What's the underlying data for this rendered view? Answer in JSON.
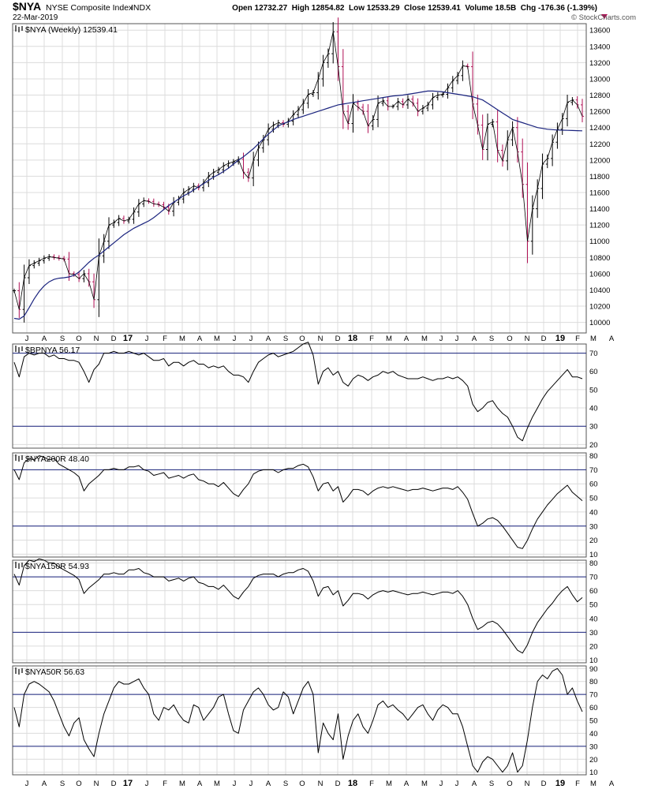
{
  "header": {
    "symbol": "$NYA",
    "name": "NYSE Composite Index",
    "exchange": "INDX",
    "date": "22-Mar-2019",
    "quote": "Open 12732.27  High 12854.82  Low 12533.29  Close 12539.41  Volume 18.5B  Chg -176.36 (-1.39%)",
    "watermark": "© StockCharts.com"
  },
  "colors": {
    "price_line": "#000000",
    "price_up_bar": "#000000",
    "price_down_bar": "#b01055",
    "moving_average": "#1a237e",
    "reference_line": "#1a237e",
    "indicator_line": "#000000",
    "grid": "#dcdcdc",
    "frame": "#555555"
  },
  "x_axis": {
    "labels": [
      "J",
      "A",
      "S",
      "O",
      "N",
      "D",
      "17",
      "J",
      "F",
      "M",
      "A",
      "M",
      "J",
      "J",
      "A",
      "S",
      "O",
      "N",
      "D",
      "18",
      "F",
      "M",
      "A",
      "M",
      "J",
      "J",
      "A",
      "S",
      "O",
      "N",
      "D",
      "19",
      "F",
      "M",
      "A"
    ],
    "bold": [
      "17",
      "18",
      "19"
    ]
  },
  "chart_data": [
    {
      "type": "line",
      "panel": "price",
      "label": "$NYA (Weekly) 12539.41",
      "y_ticks": [
        10000,
        10200,
        10400,
        10600,
        10800,
        11000,
        11200,
        11400,
        11600,
        11800,
        12000,
        12200,
        12400,
        12600,
        12800,
        13000,
        13200,
        13400,
        13600
      ],
      "ylim": [
        9870,
        13680
      ],
      "series": [
        {
          "role": "close",
          "values": [
            10390,
            10160,
            10550,
            10700,
            10730,
            10760,
            10790,
            10810,
            10800,
            10790,
            10780,
            10600,
            10590,
            10540,
            10600,
            10500,
            10280,
            10820,
            11000,
            11200,
            11230,
            11280,
            11250,
            11270,
            11360,
            11460,
            11500,
            11490,
            11460,
            11450,
            11420,
            11370,
            11480,
            11520,
            11600,
            11640,
            11680,
            11660,
            11720,
            11800,
            11850,
            11880,
            11930,
            11960,
            11980,
            12010,
            11850,
            11780,
            12000,
            12150,
            12250,
            12380,
            12430,
            12460,
            12440,
            12480,
            12560,
            12620,
            12700,
            12810,
            12830,
            13000,
            13200,
            13310,
            13580,
            13150,
            12600,
            12450,
            12700,
            12650,
            12600,
            12420,
            12500,
            12700,
            12730,
            12660,
            12660,
            12720,
            12680,
            12750,
            12700,
            12600,
            12640,
            12680,
            12770,
            12800,
            12810,
            12890,
            12980,
            13040,
            13160,
            13150,
            12690,
            12430,
            12130,
            12440,
            12470,
            12120,
            11990,
            12250,
            12400,
            12100,
            11700,
            11000,
            11400,
            11650,
            11950,
            12020,
            12220,
            12380,
            12510,
            12710,
            12740,
            12680,
            12539
          ]
        },
        {
          "role": "moving_average",
          "values": [
            10050,
            10040,
            10080,
            10180,
            10290,
            10380,
            10450,
            10500,
            10530,
            10545,
            10550,
            10560,
            10580,
            10620,
            10680,
            10740,
            10790,
            10830,
            10880,
            10930,
            10980,
            11030,
            11080,
            11120,
            11160,
            11190,
            11220,
            11250,
            11290,
            11340,
            11390,
            11440,
            11480,
            11520,
            11560,
            11590,
            11630,
            11670,
            11710,
            11750,
            11790,
            11820,
            11860,
            11900,
            11950,
            12000,
            12040,
            12090,
            12140,
            12200,
            12260,
            12320,
            12370,
            12420,
            12450,
            12470,
            12500,
            12520,
            12540,
            12560,
            12580,
            12600,
            12620,
            12640,
            12660,
            12680,
            12690,
            12700,
            12710,
            12720,
            12730,
            12740,
            12750,
            12760,
            12770,
            12780,
            12790,
            12795,
            12800,
            12810,
            12820,
            12830,
            12840,
            12850,
            12850,
            12845,
            12840,
            12830,
            12820,
            12810,
            12800,
            12790,
            12780,
            12760,
            12740,
            12700,
            12660,
            12620,
            12580,
            12540,
            12500,
            12480,
            12460,
            12440,
            12420,
            12400,
            12390,
            12380,
            12375,
            12370,
            12368,
            12366,
            12364,
            12362,
            12360
          ]
        }
      ]
    },
    {
      "type": "line",
      "panel": "indicator",
      "label": "$BPNYA 56.17",
      "y_ticks": [
        20,
        30,
        40,
        50,
        60,
        70
      ],
      "reference_lines": [
        30,
        70
      ],
      "ylim": [
        18,
        75
      ],
      "values": [
        65,
        57,
        68,
        70,
        69,
        70,
        70,
        68,
        69,
        67,
        67,
        66,
        66,
        65,
        60,
        54,
        61,
        64,
        70,
        70,
        71,
        70,
        70,
        71,
        70,
        69,
        70,
        68,
        66,
        66,
        67,
        63,
        65,
        65,
        63,
        65,
        66,
        64,
        64,
        62,
        63,
        62,
        63,
        60,
        58,
        58,
        57,
        54,
        60,
        65,
        67,
        69,
        70,
        68,
        69,
        70,
        71,
        73,
        75,
        76,
        69,
        53,
        60,
        62,
        58,
        60,
        54,
        52,
        56,
        58,
        57,
        55,
        57,
        58,
        60,
        59,
        60,
        58,
        57,
        56,
        56,
        56,
        57,
        56,
        55,
        56,
        56,
        57,
        56,
        57,
        55,
        52,
        42,
        38,
        40,
        43,
        44,
        40,
        37,
        35,
        30,
        24,
        22,
        29,
        35,
        40,
        45,
        49,
        52,
        55,
        58,
        61,
        57,
        57,
        56
      ]
    },
    {
      "type": "line",
      "panel": "indicator",
      "label": "$NYA200R 48.40",
      "y_ticks": [
        10,
        20,
        30,
        40,
        50,
        60,
        70,
        80
      ],
      "reference_lines": [
        30,
        70
      ],
      "ylim": [
        8,
        82
      ],
      "values": [
        70,
        63,
        75,
        78,
        77,
        80,
        79,
        77,
        78,
        74,
        72,
        70,
        68,
        65,
        55,
        60,
        63,
        66,
        70,
        70,
        71,
        70,
        70,
        72,
        72,
        73,
        70,
        69,
        66,
        67,
        68,
        64,
        65,
        66,
        64,
        66,
        67,
        63,
        62,
        60,
        60,
        58,
        61,
        57,
        53,
        51,
        56,
        60,
        67,
        69,
        70,
        70,
        70,
        68,
        70,
        71,
        71,
        73,
        74,
        72,
        65,
        55,
        60,
        61,
        55,
        58,
        47,
        51,
        56,
        56,
        55,
        52,
        55,
        57,
        58,
        57,
        58,
        57,
        56,
        55,
        56,
        56,
        57,
        56,
        55,
        56,
        57,
        57,
        56,
        58,
        54,
        49,
        39,
        30,
        32,
        35,
        36,
        34,
        30,
        25,
        20,
        15,
        14,
        20,
        28,
        35,
        40,
        45,
        49,
        53,
        56,
        59,
        54,
        51,
        48
      ]
    },
    {
      "type": "line",
      "panel": "indicator",
      "label": "$NYA150R 54.93",
      "y_ticks": [
        10,
        20,
        30,
        40,
        50,
        60,
        70,
        80
      ],
      "reference_lines": [
        30,
        70
      ],
      "ylim": [
        8,
        82
      ],
      "values": [
        72,
        64,
        78,
        82,
        81,
        83,
        82,
        80,
        80,
        77,
        75,
        73,
        71,
        68,
        58,
        62,
        65,
        68,
        72,
        72,
        73,
        72,
        72,
        75,
        75,
        76,
        73,
        72,
        70,
        70,
        70,
        67,
        68,
        69,
        67,
        69,
        70,
        66,
        65,
        63,
        63,
        61,
        64,
        60,
        56,
        54,
        59,
        63,
        69,
        71,
        72,
        72,
        72,
        70,
        72,
        73,
        73,
        75,
        76,
        74,
        67,
        56,
        62,
        63,
        57,
        60,
        49,
        53,
        58,
        58,
        57,
        54,
        57,
        59,
        60,
        59,
        60,
        59,
        58,
        57,
        58,
        58,
        59,
        58,
        57,
        58,
        59,
        59,
        58,
        60,
        56,
        50,
        40,
        32,
        34,
        37,
        38,
        36,
        32,
        27,
        22,
        17,
        15,
        21,
        30,
        37,
        42,
        47,
        51,
        56,
        60,
        63,
        57,
        52,
        55
      ]
    },
    {
      "type": "line",
      "panel": "indicator",
      "label": "$NYA50R 56.63",
      "y_ticks": [
        10,
        20,
        30,
        40,
        50,
        60,
        70,
        80,
        90
      ],
      "reference_lines": [
        30,
        70
      ],
      "ylim": [
        8,
        92
      ],
      "values": [
        60,
        45,
        70,
        78,
        80,
        78,
        75,
        72,
        65,
        55,
        45,
        38,
        48,
        52,
        35,
        28,
        22,
        40,
        55,
        65,
        75,
        80,
        78,
        78,
        80,
        82,
        75,
        70,
        55,
        50,
        60,
        58,
        62,
        55,
        50,
        48,
        62,
        60,
        50,
        55,
        60,
        68,
        70,
        55,
        42,
        40,
        58,
        65,
        72,
        75,
        70,
        62,
        58,
        60,
        72,
        68,
        55,
        65,
        75,
        80,
        70,
        25,
        48,
        40,
        35,
        55,
        20,
        38,
        50,
        55,
        45,
        40,
        50,
        62,
        65,
        60,
        62,
        58,
        55,
        50,
        55,
        60,
        62,
        55,
        50,
        58,
        62,
        60,
        55,
        55,
        45,
        30,
        15,
        10,
        18,
        22,
        20,
        15,
        10,
        15,
        25,
        10,
        15,
        35,
        60,
        80,
        85,
        82,
        88,
        90,
        85,
        70,
        75,
        65,
        56.63
      ]
    }
  ]
}
